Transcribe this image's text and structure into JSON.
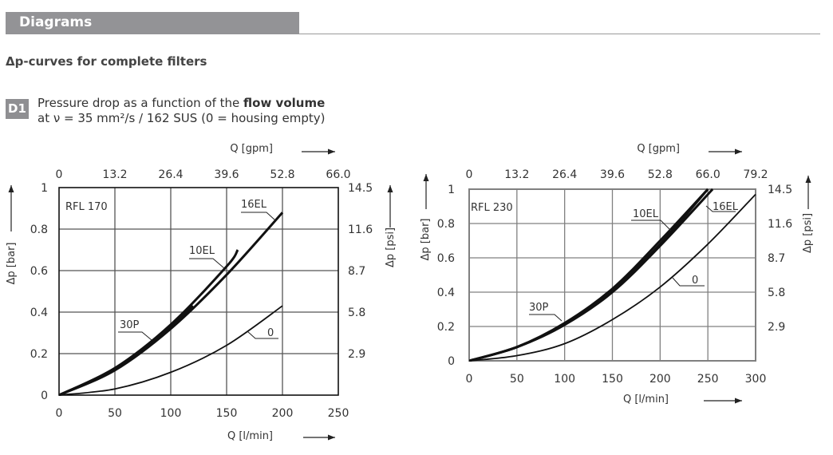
{
  "header": {
    "section_title": "Diagrams"
  },
  "subtitle": "Δp-curves for complete filters",
  "figure": {
    "badge": "D1",
    "description_line1_prefix": "Pressure drop as a function of the ",
    "description_line1_bold": "flow volume",
    "description_line2": "at ν = 35 mm²/s / 162 SUS  (0 = housing empty)"
  },
  "chart_data": [
    {
      "type": "line",
      "title": "RFL 170",
      "xlabel": "Q [l/min]",
      "x2label": "Q [gpm]",
      "ylabel": "Δp [bar]",
      "y2label": "Δp [psi]",
      "xlim": [
        0,
        250
      ],
      "ylim": [
        0,
        1
      ],
      "x_ticks": [
        "0",
        "50",
        "100",
        "150",
        "200",
        "250"
      ],
      "x2_ticks": [
        "0",
        "13.2",
        "26.4",
        "39.6",
        "52.8",
        "66.0"
      ],
      "y_ticks": [
        "0",
        "0.2",
        "0.4",
        "0.6",
        "0.8",
        "1"
      ],
      "y2_ticks": [
        "2.9",
        "5.8",
        "8.7",
        "11.6",
        "14.5"
      ],
      "grid": true,
      "series": [
        {
          "name": "16EL",
          "x": [
            0,
            50,
            100,
            150,
            200
          ],
          "y": [
            0,
            0.12,
            0.32,
            0.58,
            0.88
          ]
        },
        {
          "name": "10EL",
          "x": [
            0,
            50,
            100,
            150,
            160
          ],
          "y": [
            0,
            0.13,
            0.34,
            0.62,
            0.7
          ]
        },
        {
          "name": "30P",
          "x": [
            0,
            50,
            100,
            120
          ],
          "y": [
            0,
            0.13,
            0.33,
            0.43
          ]
        },
        {
          "name": "0",
          "x": [
            0,
            50,
            100,
            150,
            200
          ],
          "y": [
            0,
            0.03,
            0.11,
            0.24,
            0.43
          ]
        }
      ]
    },
    {
      "type": "line",
      "title": "RFL 230",
      "xlabel": "Q [l/min]",
      "x2label": "Q [gpm]",
      "ylabel": "Δp [bar]",
      "y2label": "Δp [psi]",
      "xlim": [
        0,
        300
      ],
      "ylim": [
        0,
        1
      ],
      "x_ticks": [
        "0",
        "50",
        "100",
        "150",
        "200",
        "250",
        "300"
      ],
      "x2_ticks": [
        "0",
        "13.2",
        "26.4",
        "39.6",
        "52.8",
        "66.0",
        "79.2"
      ],
      "y_ticks": [
        "0",
        "0.2",
        "0.4",
        "0.6",
        "0.8",
        "1"
      ],
      "y2_ticks": [
        "2.9",
        "5.8",
        "8.7",
        "11.6",
        "14.5"
      ],
      "grid": true,
      "series": [
        {
          "name": "10EL",
          "x": [
            0,
            50,
            100,
            150,
            200,
            250
          ],
          "y": [
            0,
            0.08,
            0.22,
            0.42,
            0.7,
            1.0
          ]
        },
        {
          "name": "16EL",
          "x": [
            0,
            50,
            100,
            150,
            200,
            255
          ],
          "y": [
            0,
            0.08,
            0.21,
            0.4,
            0.67,
            1.0
          ]
        },
        {
          "name": "30P",
          "x": [
            0,
            50,
            100,
            150,
            200,
            250
          ],
          "y": [
            0,
            0.08,
            0.21,
            0.41,
            0.68,
            1.0
          ]
        },
        {
          "name": "0",
          "x": [
            0,
            50,
            100,
            150,
            200,
            250,
            300
          ],
          "y": [
            0,
            0.03,
            0.1,
            0.24,
            0.43,
            0.68,
            0.97
          ]
        }
      ]
    }
  ]
}
